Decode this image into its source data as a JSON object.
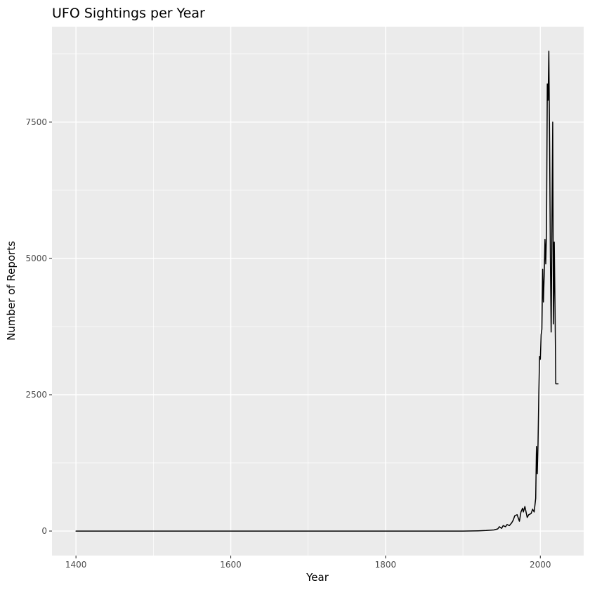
{
  "chart_data": {
    "type": "line",
    "title": "UFO Sightings per Year",
    "xlabel": "Year",
    "ylabel": "Number of Reports",
    "xlim": [
      1369,
      2056
    ],
    "ylim": [
      -450,
      9250
    ],
    "x_ticks": [
      1400,
      1600,
      1800,
      2000
    ],
    "x_tick_labels": [
      "1400",
      "1600",
      "1800",
      "2000"
    ],
    "x_minor_ticks": [
      1500,
      1700,
      1900
    ],
    "y_ticks": [
      0,
      2500,
      5000,
      7500
    ],
    "y_tick_labels": [
      "0",
      "2500",
      "5000",
      "7500"
    ],
    "y_minor_ticks": [
      1250,
      3750,
      6250,
      8750
    ],
    "grid": true,
    "legend": "none",
    "colors": {
      "panel_background": "#ebebeb",
      "grid": "#ffffff",
      "line": "#000000",
      "tick_label": "#4d4d4d"
    },
    "series": [
      {
        "x": [
          1400,
          1700,
          1900,
          1920,
          1930,
          1935,
          1940,
          1945,
          1947,
          1950,
          1952,
          1955,
          1957,
          1960,
          1963,
          1965,
          1967,
          1970,
          1973,
          1975,
          1977,
          1978,
          1980,
          1983,
          1985,
          1988,
          1990,
          1992,
          1994,
          1995,
          1996,
          1997,
          1998,
          1999,
          2000,
          2001,
          2002,
          2003,
          2004,
          2005,
          2006,
          2007,
          2008,
          2009,
          2010,
          2011,
          2012,
          2013,
          2014,
          2015,
          2016,
          2017,
          2018,
          2019,
          2020,
          2021,
          2022,
          2023
        ],
        "y": [
          0,
          0,
          0,
          5,
          10,
          15,
          20,
          40,
          80,
          50,
          100,
          80,
          120,
          100,
          150,
          200,
          280,
          300,
          180,
          350,
          420,
          350,
          450,
          250,
          300,
          320,
          400,
          350,
          600,
          1550,
          1050,
          1600,
          2500,
          3200,
          3150,
          3600,
          3700,
          4800,
          4200,
          4700,
          5350,
          4900,
          5500,
          8200,
          7900,
          8800,
          7100,
          5000,
          3650,
          5600,
          7500,
          3800,
          5300,
          4100,
          2700,
          2700,
          2700,
          2700
        ]
      }
    ]
  }
}
